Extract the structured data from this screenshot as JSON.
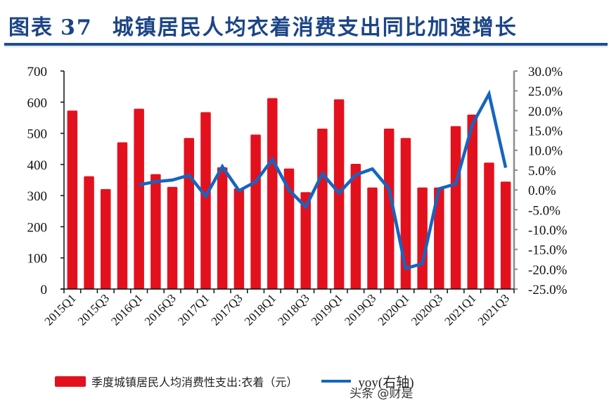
{
  "header": {
    "figure_label": "图表",
    "figure_number": "37",
    "title": "城镇居民人均衣着消费支出同比加速增长"
  },
  "legend": {
    "bar_label": "季度城镇居民人均消费性支出:衣着（元）",
    "line_label": "yoy(右轴)"
  },
  "watermark": "头条 @财是",
  "colors": {
    "bar": "#e3111d",
    "line": "#1565c0",
    "title": "#1c4587",
    "rule": "#1f4d8f",
    "left_axis": "#111111",
    "right_axis": "#8c8c8c"
  },
  "chart_data": {
    "type": "bar+line",
    "title": "城镇居民人均衣着消费支出同比加速增长",
    "xlabel": "",
    "ylabel": "季度城镇居民人均消费性支出:衣着（元）",
    "y2label": "yoy(右轴)",
    "ylim": [
      0,
      700
    ],
    "yticks": [
      0,
      100,
      200,
      300,
      400,
      500,
      600,
      700
    ],
    "y2lim": [
      -25,
      30
    ],
    "y2ticks": [
      "-25.0%",
      "-20.0%",
      "-15.0%",
      "-10.0%",
      "-5.0%",
      "0.0%",
      "5.0%",
      "10.0%",
      "15.0%",
      "20.0%",
      "25.0%",
      "30.0%"
    ],
    "grid": false,
    "legend_position": "bottom",
    "categories": [
      "2015Q1",
      "2015Q2",
      "2015Q3",
      "2015Q4",
      "2016Q1",
      "2016Q2",
      "2016Q3",
      "2016Q4",
      "2017Q1",
      "2017Q2",
      "2017Q3",
      "2017Q4",
      "2018Q1",
      "2018Q2",
      "2018Q3",
      "2018Q4",
      "2019Q1",
      "2019Q2",
      "2019Q3",
      "2019Q4",
      "2020Q1",
      "2020Q2",
      "2020Q3",
      "2020Q4",
      "2021Q1",
      "2021Q2",
      "2021Q3"
    ],
    "tick_labels_shown": [
      "2015Q1",
      "2015Q3",
      "2016Q1",
      "2016Q3",
      "2017Q1",
      "2017Q3",
      "2018Q1",
      "2018Q3",
      "2019Q1",
      "2019Q3",
      "2020Q1",
      "2020Q3",
      "2021Q1",
      "2021Q3"
    ],
    "series": [
      {
        "name": "季度城镇居民人均消费性支出:衣着（元）",
        "type": "bar",
        "axis": "left",
        "values": [
          573,
          362,
          321,
          471,
          579,
          369,
          328,
          485,
          568,
          391,
          323,
          496,
          613,
          387,
          311,
          515,
          609,
          402,
          326,
          515,
          485,
          326,
          326,
          523,
          560,
          406,
          345
        ]
      },
      {
        "name": "yoy(右轴)",
        "type": "line",
        "axis": "right",
        "unit": "%",
        "values": [
          null,
          null,
          null,
          null,
          1.3,
          2.1,
          2.5,
          3.7,
          -1.6,
          5.9,
          -0.2,
          2.1,
          7.7,
          0.0,
          -4.3,
          4.1,
          -0.8,
          3.8,
          5.3,
          0.3,
          -19.8,
          -18.6,
          0.3,
          1.5,
          16.5,
          24.2,
          5.6
        ]
      }
    ]
  }
}
